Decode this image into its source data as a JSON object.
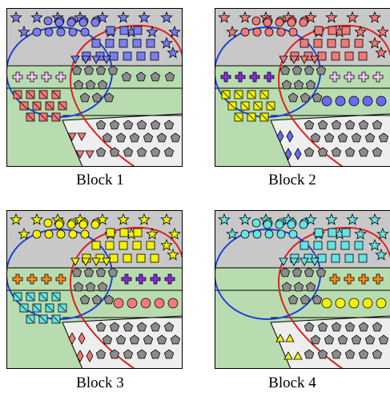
{
  "blocks": [
    {
      "caption": "Block 1",
      "shapes": {
        "stars": "#7a7ef0",
        "circles": "#7a7ef0",
        "squares": "#7a7ef0",
        "triangles_top": "#7a7ef0",
        "crosses": "#f4c6f4",
        "band_squares": "#f07a7a",
        "band_squares_symbol": "slash",
        "right_band_a": "gray-pentagons",
        "right_band_b": "gray-pentagons",
        "bottom_triangles": "#f07a7a",
        "bottom_triangles_style": "v"
      }
    },
    {
      "caption": "Block 2",
      "shapes": {
        "stars": "#f07a7a",
        "circles": "#f07a7a",
        "squares": "#f07a7a",
        "triangles_top": "#f07a7a",
        "crosses": "#8a2be2",
        "band_squares": "#f2f200",
        "band_squares_symbol": "slash",
        "right_crosses": "#f4c6f4",
        "right_circles": "#6a6af0",
        "bottom_triangles": "#6a6af0",
        "bottom_triangles_style": "diamond"
      }
    },
    {
      "caption": "Block 3",
      "shapes": {
        "stars": "#f2f200",
        "circles": "#f2f200",
        "squares": "#f2f200",
        "triangles_top": "#f2f200",
        "crosses": "#ff8c1a",
        "band_squares": "#66e3e3",
        "band_squares_symbol": "slash",
        "right_crosses": "#8a2be2",
        "right_circles": "#f07a7a",
        "bottom_triangles": "#f07a7a",
        "bottom_triangles_style": "diamond"
      }
    },
    {
      "caption": "Block 4",
      "shapes": {
        "stars": "#66e3e3",
        "circles": "#66e3e3",
        "squares": "#66e3e3",
        "triangles_top": "#66e3e3",
        "right_crosses": "#ff8c1a",
        "right_circles": "#f2f200",
        "bottom_triangles": "#f2f200",
        "bottom_triangles_style": "up"
      }
    }
  ],
  "colors": {
    "sky": "#c8c8c8",
    "grass": "#b8dcb0",
    "road": "#eeeeee",
    "circle_outline": "#1f3fd6",
    "region_outline": "#e02020",
    "pentagon": "#8c8c8c"
  }
}
